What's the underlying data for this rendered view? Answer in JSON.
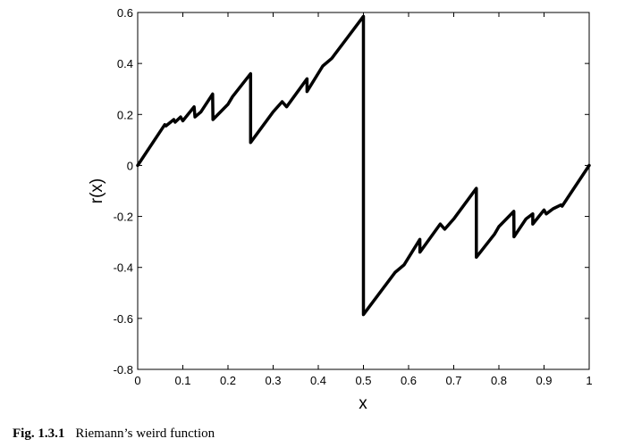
{
  "chart_data": {
    "type": "line",
    "title": "",
    "xlabel": "x",
    "ylabel": "r(x)",
    "xlim": [
      0,
      1
    ],
    "ylim": [
      -0.8,
      0.6
    ],
    "xticks": [
      0,
      0.1,
      0.2,
      0.3,
      0.4,
      0.5,
      0.6,
      0.7,
      0.8,
      0.9,
      1
    ],
    "yticks": [
      -0.8,
      -0.6,
      -0.4,
      -0.2,
      0,
      0.2,
      0.4,
      0.6
    ],
    "xtick_labels": [
      "0",
      "0.1",
      "0.2",
      "0.3",
      "0.4",
      "0.5",
      "0.6",
      "0.7",
      "0.8",
      "0.9",
      "1"
    ],
    "ytick_labels": [
      "-0.8",
      "-0.6",
      "-0.4",
      "-0.2",
      "0",
      "0.2",
      "0.4",
      "0.6"
    ],
    "grid": false,
    "series": [
      {
        "name": "",
        "color": "#000000",
        "points": [
          [
            0,
            0
          ],
          [
            0.06,
            0.16
          ],
          [
            0.0625,
            0.155
          ],
          [
            0.08,
            0.18
          ],
          [
            0.083,
            0.17
          ],
          [
            0.095,
            0.19
          ],
          [
            0.1,
            0.175
          ],
          [
            0.125,
            0.23
          ],
          [
            0.127,
            0.19
          ],
          [
            0.14,
            0.21
          ],
          [
            0.166,
            0.28
          ],
          [
            0.1667,
            0.18
          ],
          [
            0.2,
            0.24
          ],
          [
            0.21,
            0.27
          ],
          [
            0.25,
            0.36
          ],
          [
            0.2501,
            0.09
          ],
          [
            0.3,
            0.21
          ],
          [
            0.32,
            0.25
          ],
          [
            0.33,
            0.23
          ],
          [
            0.375,
            0.34
          ],
          [
            0.3751,
            0.29
          ],
          [
            0.41,
            0.39
          ],
          [
            0.43,
            0.42
          ],
          [
            0.5,
            0.585
          ],
          [
            0.5,
            0.0
          ],
          [
            0.5,
            -0.585
          ],
          [
            0.57,
            -0.42
          ],
          [
            0.59,
            -0.39
          ],
          [
            0.625,
            -0.29
          ],
          [
            0.6251,
            -0.34
          ],
          [
            0.67,
            -0.23
          ],
          [
            0.68,
            -0.25
          ],
          [
            0.7,
            -0.21
          ],
          [
            0.75,
            -0.09
          ],
          [
            0.7501,
            -0.36
          ],
          [
            0.79,
            -0.27
          ],
          [
            0.8,
            -0.24
          ],
          [
            0.833,
            -0.18
          ],
          [
            0.8334,
            -0.28
          ],
          [
            0.86,
            -0.21
          ],
          [
            0.875,
            -0.19
          ],
          [
            0.8751,
            -0.23
          ],
          [
            0.9,
            -0.175
          ],
          [
            0.905,
            -0.19
          ],
          [
            0.92,
            -0.17
          ],
          [
            0.9375,
            -0.155
          ],
          [
            0.94,
            -0.16
          ],
          [
            1,
            0
          ]
        ]
      }
    ]
  },
  "caption": {
    "number": "Fig. 1.3.1",
    "text": "Riemann’s weird function"
  }
}
